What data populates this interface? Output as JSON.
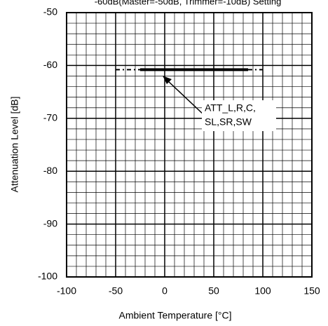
{
  "chart_data": {
    "type": "line",
    "title": "-60dB(Master=-50dB, Trimmer=-10dB) Setting",
    "x_label": "Ambient Temperature [°C]",
    "y_label": "Attenuation Level [dB]",
    "xlim": [
      -100,
      150
    ],
    "xticks": [
      -100,
      -50,
      0,
      50,
      100,
      150
    ],
    "ylim": [
      -100,
      -50
    ],
    "yticks": [
      -100,
      -90,
      -80,
      -70,
      -60,
      -50
    ],
    "grid": true,
    "minor_grid": {
      "x": 10,
      "y": 2
    },
    "series": [
      {
        "color": "#000000",
        "style": "dashed",
        "x": [
          -50,
          -25
        ],
        "values": [
          -60.8,
          -60.8
        ]
      },
      {
        "color": "#000000",
        "style": "solid",
        "x": [
          -25,
          85
        ],
        "values": [
          -60.8,
          -60.8
        ]
      },
      {
        "color": "#000000",
        "style": "dashed",
        "x": [
          85,
          100
        ],
        "values": [
          -60.8,
          -60.8
        ]
      }
    ],
    "annotation": [
      "ATT_L,R,C,",
      "SL,SR,SW"
    ]
  }
}
